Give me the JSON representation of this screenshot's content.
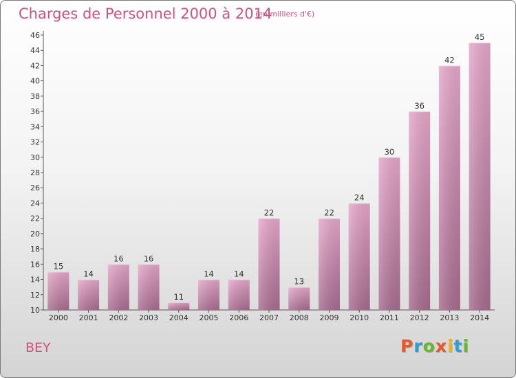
{
  "header": {
    "title": "Charges de Personnel 2000 à 2014",
    "subtitle": "(en milliers d'€)"
  },
  "footer": {
    "commune": "BEY",
    "logo_text": "Proxiti",
    "logo_colors": [
      "#e8592a",
      "#2b9ed6",
      "#66b82e",
      "#e8592a",
      "#f3b11b",
      "#2b9ed6",
      "#66b82e"
    ]
  },
  "chart_data": {
    "type": "bar",
    "categories": [
      "2000",
      "2001",
      "2002",
      "2003",
      "2004",
      "2005",
      "2006",
      "2007",
      "2008",
      "2009",
      "2010",
      "2011",
      "2012",
      "2013",
      "2014"
    ],
    "values": [
      15,
      14,
      16,
      16,
      11,
      14,
      14,
      22,
      13,
      22,
      24,
      30,
      36,
      42,
      45
    ],
    "ylim": [
      10,
      46
    ],
    "yticks": [
      10,
      12,
      14,
      16,
      18,
      20,
      22,
      24,
      26,
      28,
      30,
      32,
      34,
      36,
      38,
      40,
      42,
      44,
      46
    ],
    "grid": false,
    "data_labels": true,
    "bar_color_top": "#e7a8cb",
    "bar_color_bottom": "#a86c8f"
  }
}
